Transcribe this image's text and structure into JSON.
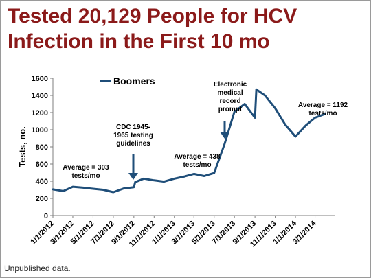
{
  "title": {
    "line1": "Tested 20,129 People for HCV",
    "line2": "Infection in the First 10 mo"
  },
  "footnote": "Unpublished data.",
  "colors": {
    "title": "#8b1a1a",
    "series": "#1f4e79",
    "arrow": "#1f4e79"
  },
  "chart_data": {
    "type": "line",
    "ylabel": "Tests, no.",
    "ylim": [
      0,
      1600
    ],
    "yticks": [
      0,
      200,
      400,
      600,
      800,
      1000,
      1200,
      1400,
      1600
    ],
    "xticks": [
      "1/1/2012",
      "3/1/2012",
      "5/1/2012",
      "7/1/2012",
      "9/1/2012",
      "11/1/2012",
      "1/1/2013",
      "3/1/2013",
      "5/1/2013",
      "7/1/2013",
      "9/1/2013",
      "11/1/2013",
      "1/1/2014",
      "3/1/2014"
    ],
    "legend_position": "top-left",
    "series": [
      {
        "name": "Boomers",
        "points": [
          [
            "2012-01-01",
            305
          ],
          [
            "2012-02-01",
            285
          ],
          [
            "2012-03-01",
            335
          ],
          [
            "2012-04-01",
            325
          ],
          [
            "2012-05-01",
            312
          ],
          [
            "2012-06-01",
            300
          ],
          [
            "2012-07-01",
            272
          ],
          [
            "2012-08-01",
            315
          ],
          [
            "2012-09-01",
            330
          ],
          [
            "2012-09-05",
            390
          ],
          [
            "2012-10-01",
            430
          ],
          [
            "2012-11-01",
            410
          ],
          [
            "2012-12-01",
            395
          ],
          [
            "2013-01-01",
            430
          ],
          [
            "2013-02-01",
            455
          ],
          [
            "2013-03-01",
            485
          ],
          [
            "2013-04-01",
            460
          ],
          [
            "2013-05-01",
            495
          ],
          [
            "2013-06-01",
            830
          ],
          [
            "2013-07-01",
            1210
          ],
          [
            "2013-08-01",
            1300
          ],
          [
            "2013-09-01",
            1140
          ],
          [
            "2013-09-05",
            1470
          ],
          [
            "2013-10-01",
            1400
          ],
          [
            "2013-11-01",
            1250
          ],
          [
            "2013-12-01",
            1060
          ],
          [
            "2014-01-01",
            920
          ],
          [
            "2014-02-01",
            1050
          ],
          [
            "2014-03-01",
            1140
          ],
          [
            "2014-04-01",
            1185
          ]
        ]
      }
    ],
    "annotations": [
      {
        "text": [
          "Average = 303",
          "tests/mo"
        ]
      },
      {
        "text": [
          "CDC 1945-",
          "1965 testing",
          "guidelines"
        ]
      },
      {
        "text": [
          "Average = 438",
          "tests/mo"
        ]
      },
      {
        "text": [
          "Electronic",
          "medical",
          "record",
          "prompt"
        ]
      },
      {
        "text": [
          "Average = 1192",
          "tests/mo"
        ]
      }
    ]
  }
}
